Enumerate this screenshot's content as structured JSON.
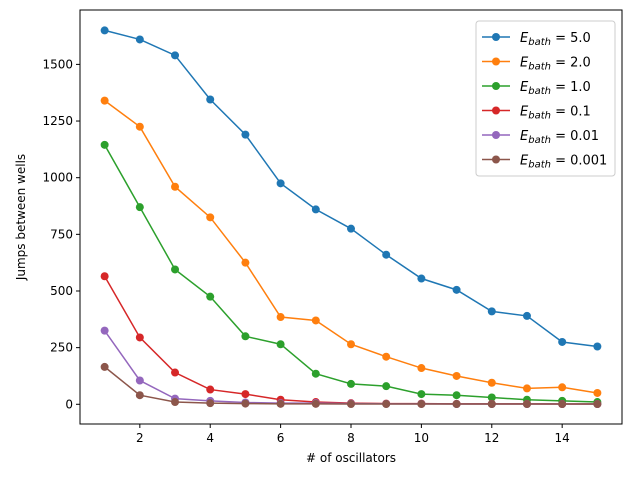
{
  "chart_data": {
    "type": "line",
    "title": "",
    "xlabel": "# of oscillators",
    "ylabel": "Jumps between wells",
    "xlim": [
      0.3,
      15.7
    ],
    "ylim": [
      -87,
      1740
    ],
    "xticks": [
      2,
      4,
      6,
      8,
      10,
      12,
      14
    ],
    "yticks": [
      0,
      250,
      500,
      750,
      1000,
      1250,
      1500
    ],
    "legend_position": "top-right",
    "grid": false,
    "x": [
      1,
      2,
      3,
      4,
      5,
      6,
      7,
      8,
      9,
      10,
      11,
      12,
      13,
      14,
      15
    ],
    "series": [
      {
        "name": "E_bath = 5.0",
        "label_var": "E",
        "label_sub": "bath",
        "label_val": " = 5.0",
        "color": "#1f77b4",
        "values": [
          1650,
          1610,
          1540,
          1345,
          1190,
          975,
          860,
          775,
          660,
          555,
          505,
          410,
          390,
          275,
          255
        ]
      },
      {
        "name": "E_bath = 2.0",
        "label_var": "E",
        "label_sub": "bath",
        "label_val": " = 2.0",
        "color": "#ff7f0e",
        "values": [
          1340,
          1225,
          960,
          825,
          625,
          385,
          370,
          265,
          210,
          160,
          125,
          95,
          70,
          75,
          50
        ]
      },
      {
        "name": "E_bath = 1.0",
        "label_var": "E",
        "label_sub": "bath",
        "label_val": " = 1.0",
        "color": "#2ca02c",
        "values": [
          1145,
          870,
          595,
          475,
          300,
          265,
          135,
          90,
          80,
          45,
          40,
          30,
          20,
          15,
          10
        ]
      },
      {
        "name": "E_bath = 0.1",
        "label_var": "E",
        "label_sub": "bath",
        "label_val": " = 0.1",
        "color": "#d62728",
        "values": [
          565,
          295,
          140,
          65,
          45,
          20,
          10,
          5,
          3,
          3,
          2,
          2,
          2,
          1,
          1
        ]
      },
      {
        "name": "E_bath = 0.01",
        "label_var": "E",
        "label_sub": "bath",
        "label_val": " = 0.01",
        "color": "#9467bd",
        "values": [
          325,
          105,
          25,
          15,
          8,
          5,
          5,
          3,
          2,
          2,
          1,
          1,
          1,
          1,
          1
        ]
      },
      {
        "name": "E_bath = 0.001",
        "label_var": "E",
        "label_sub": "bath",
        "label_val": " = 0.001",
        "color": "#8c564b",
        "values": [
          165,
          40,
          10,
          5,
          3,
          2,
          2,
          1,
          1,
          1,
          1,
          1,
          1,
          1,
          1
        ]
      }
    ]
  }
}
